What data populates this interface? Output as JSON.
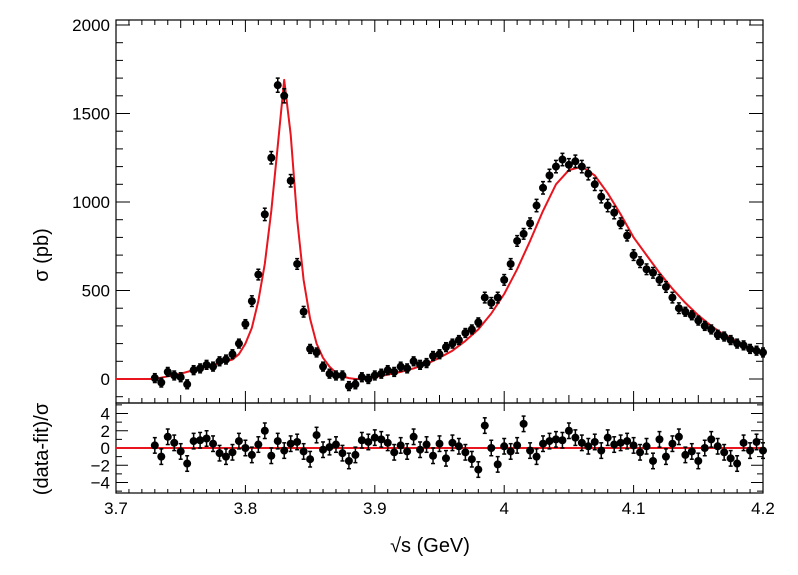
{
  "chart_data": [
    {
      "type": "scatter",
      "panel": "main",
      "title": "",
      "xlabel": "√s (GeV)",
      "ylabel": "σ (pb)",
      "xlim": [
        3.7,
        4.2
      ],
      "ylim": [
        -100,
        2000
      ],
      "x_ticks": [
        "3.7",
        "3.8",
        "3.9",
        "4",
        "4.1",
        "4.2"
      ],
      "y_ticks": [
        "0",
        "500",
        "1000",
        "1500",
        "2000"
      ],
      "series": [
        {
          "name": "data",
          "color": "#000000",
          "x": [
            3.73,
            3.735,
            3.74,
            3.745,
            3.75,
            3.755,
            3.76,
            3.765,
            3.77,
            3.775,
            3.78,
            3.785,
            3.79,
            3.795,
            3.8,
            3.805,
            3.81,
            3.815,
            3.82,
            3.825,
            3.83,
            3.835,
            3.84,
            3.845,
            3.85,
            3.855,
            3.86,
            3.865,
            3.87,
            3.875,
            3.88,
            3.885,
            3.89,
            3.895,
            3.9,
            3.905,
            3.91,
            3.915,
            3.92,
            3.925,
            3.93,
            3.935,
            3.94,
            3.945,
            3.95,
            3.955,
            3.96,
            3.965,
            3.97,
            3.975,
            3.98,
            3.985,
            3.99,
            3.995,
            4.0,
            4.005,
            4.01,
            4.015,
            4.02,
            4.025,
            4.03,
            4.035,
            4.04,
            4.045,
            4.05,
            4.055,
            4.06,
            4.065,
            4.07,
            4.075,
            4.08,
            4.085,
            4.09,
            4.095,
            4.1,
            4.105,
            4.11,
            4.115,
            4.12,
            4.125,
            4.13,
            4.135,
            4.14,
            4.145,
            4.15,
            4.155,
            4.16,
            4.165,
            4.17,
            4.175,
            4.18,
            4.185,
            4.19,
            4.195,
            4.2
          ],
          "y": [
            5,
            -20,
            40,
            20,
            10,
            -30,
            50,
            60,
            80,
            70,
            100,
            110,
            140,
            200,
            310,
            440,
            590,
            930,
            1250,
            1660,
            1600,
            1120,
            650,
            380,
            170,
            150,
            70,
            30,
            20,
            20,
            -40,
            -30,
            10,
            0,
            20,
            30,
            50,
            40,
            70,
            60,
            100,
            80,
            90,
            130,
            140,
            180,
            200,
            220,
            260,
            280,
            320,
            460,
            430,
            460,
            560,
            650,
            780,
            820,
            880,
            980,
            1080,
            1150,
            1200,
            1240,
            1210,
            1230,
            1200,
            1160,
            1100,
            1030,
            980,
            940,
            880,
            810,
            700,
            660,
            620,
            600,
            560,
            520,
            460,
            400,
            380,
            360,
            330,
            300,
            280,
            250,
            240,
            220,
            200,
            190,
            170,
            160,
            150
          ],
          "yerr": [
            25,
            25,
            25,
            25,
            25,
            25,
            25,
            25,
            25,
            25,
            25,
            25,
            25,
            25,
            25,
            30,
            30,
            35,
            35,
            40,
            40,
            35,
            30,
            30,
            25,
            25,
            25,
            25,
            25,
            25,
            25,
            25,
            25,
            25,
            25,
            25,
            25,
            25,
            25,
            25,
            25,
            25,
            25,
            25,
            25,
            25,
            25,
            25,
            25,
            25,
            25,
            30,
            30,
            30,
            30,
            30,
            30,
            30,
            30,
            35,
            35,
            35,
            35,
            35,
            35,
            35,
            35,
            35,
            35,
            35,
            35,
            35,
            30,
            30,
            30,
            30,
            30,
            30,
            30,
            30,
            30,
            30,
            25,
            25,
            25,
            25,
            25,
            25,
            25,
            25,
            25,
            25,
            25,
            25,
            25
          ]
        },
        {
          "name": "fit",
          "type": "line",
          "color": "#e8141e",
          "x": [
            3.7,
            3.73,
            3.74,
            3.75,
            3.76,
            3.77,
            3.78,
            3.79,
            3.795,
            3.8,
            3.805,
            3.81,
            3.815,
            3.82,
            3.825,
            3.83,
            3.835,
            3.84,
            3.845,
            3.85,
            3.855,
            3.86,
            3.865,
            3.87,
            3.875,
            3.88,
            3.885,
            3.89,
            3.9,
            3.91,
            3.92,
            3.93,
            3.94,
            3.95,
            3.96,
            3.97,
            3.98,
            3.99,
            4.0,
            4.01,
            4.02,
            4.03,
            4.04,
            4.05,
            4.06,
            4.07,
            4.08,
            4.09,
            4.1,
            4.11,
            4.12,
            4.13,
            4.14,
            4.15,
            4.16,
            4.17,
            4.18,
            4.19,
            4.2
          ],
          "y": [
            0,
            0,
            15,
            30,
            50,
            70,
            90,
            110,
            140,
            200,
            290,
            440,
            650,
            950,
            1320,
            1690,
            1380,
            900,
            560,
            340,
            200,
            120,
            70,
            35,
            15,
            5,
            0,
            0,
            10,
            25,
            40,
            60,
            85,
            120,
            160,
            215,
            280,
            370,
            480,
            620,
            780,
            950,
            1100,
            1180,
            1200,
            1150,
            1050,
            930,
            800,
            700,
            600,
            510,
            430,
            360,
            300,
            250,
            210,
            175,
            150
          ]
        }
      ]
    },
    {
      "type": "scatter",
      "panel": "residual",
      "xlabel": "√s (GeV)",
      "ylabel": "(data-fit)/σ",
      "xlim": [
        3.7,
        4.2
      ],
      "ylim": [
        -5.5,
        5.5
      ],
      "y_ticks": [
        "−4",
        "−2",
        "0",
        "2",
        "4"
      ],
      "series": [
        {
          "name": "pull",
          "color": "#000000",
          "x": [
            3.73,
            3.735,
            3.74,
            3.745,
            3.75,
            3.755,
            3.76,
            3.765,
            3.77,
            3.775,
            3.78,
            3.785,
            3.79,
            3.795,
            3.8,
            3.805,
            3.81,
            3.815,
            3.82,
            3.825,
            3.83,
            3.835,
            3.84,
            3.845,
            3.85,
            3.855,
            3.86,
            3.865,
            3.87,
            3.875,
            3.88,
            3.885,
            3.89,
            3.895,
            3.9,
            3.905,
            3.91,
            3.915,
            3.92,
            3.925,
            3.93,
            3.935,
            3.94,
            3.945,
            3.95,
            3.955,
            3.96,
            3.965,
            3.97,
            3.975,
            3.98,
            3.985,
            3.99,
            3.995,
            4.0,
            4.005,
            4.01,
            4.015,
            4.02,
            4.025,
            4.03,
            4.035,
            4.04,
            4.045,
            4.05,
            4.055,
            4.06,
            4.065,
            4.07,
            4.075,
            4.08,
            4.085,
            4.09,
            4.095,
            4.1,
            4.105,
            4.11,
            4.115,
            4.12,
            4.125,
            4.13,
            4.135,
            4.14,
            4.145,
            4.15,
            4.155,
            4.16,
            4.165,
            4.17,
            4.175,
            4.18,
            4.185,
            4.19,
            4.195,
            4.2
          ],
          "y": [
            0.3,
            -1.0,
            1.3,
            0.6,
            -0.4,
            -1.8,
            0.8,
            0.9,
            1.1,
            0.5,
            -0.6,
            -1.0,
            -0.5,
            0.8,
            0.0,
            -0.8,
            0.4,
            2.0,
            -0.9,
            0.8,
            -0.3,
            0.5,
            0.7,
            -0.4,
            -1.3,
            1.5,
            -0.2,
            0.1,
            0.4,
            -0.6,
            -1.5,
            -0.8,
            0.9,
            0.7,
            1.2,
            1.0,
            0.6,
            -0.5,
            0.3,
            -0.4,
            1.3,
            -0.2,
            0.4,
            -0.9,
            0.5,
            -1.2,
            0.6,
            0.2,
            -0.5,
            -1.3,
            -2.5,
            2.6,
            0.0,
            -1.9,
            0.2,
            -0.4,
            0.3,
            2.8,
            -0.3,
            -1.0,
            0.5,
            0.8,
            1.0,
            0.9,
            2.0,
            1.2,
            0.6,
            0.2,
            0.7,
            -0.3,
            1.2,
            0.4,
            0.6,
            0.8,
            0.3,
            -0.5,
            0.2,
            -1.5,
            1.0,
            -1.0,
            0.5,
            1.3,
            -0.8,
            -0.4,
            -1.5,
            0.0,
            1.0,
            0.2,
            -0.5,
            -1.2,
            -1.8,
            0.6,
            -0.3,
            0.7,
            -0.3
          ],
          "yerr": [
            0.9,
            0.9,
            0.9,
            0.9,
            0.9,
            0.9,
            0.9,
            0.9,
            0.9,
            0.9,
            0.9,
            0.9,
            0.9,
            0.9,
            0.9,
            0.9,
            0.9,
            0.9,
            0.9,
            0.9,
            0.9,
            0.9,
            0.9,
            0.9,
            0.9,
            0.9,
            0.9,
            0.9,
            0.9,
            0.9,
            0.9,
            0.9,
            0.9,
            0.9,
            0.9,
            0.9,
            0.9,
            0.9,
            0.9,
            0.9,
            0.9,
            0.9,
            0.9,
            0.9,
            0.9,
            0.9,
            0.9,
            0.9,
            0.9,
            0.9,
            0.9,
            0.9,
            0.9,
            0.9,
            0.9,
            0.9,
            0.9,
            0.9,
            0.9,
            0.9,
            0.9,
            0.9,
            0.9,
            0.9,
            0.9,
            0.9,
            0.9,
            0.9,
            0.9,
            0.9,
            0.9,
            0.9,
            0.9,
            0.9,
            0.9,
            0.9,
            0.9,
            0.9,
            0.9,
            0.9,
            0.9,
            0.9,
            0.9,
            0.9,
            0.9,
            0.9,
            0.9,
            0.9,
            0.9,
            0.9,
            0.9,
            0.9,
            0.9,
            0.9,
            0.9
          ]
        },
        {
          "name": "zero-line",
          "type": "line",
          "color": "#e8141e",
          "x": [
            3.7,
            4.2
          ],
          "y": [
            0,
            0
          ]
        }
      ]
    }
  ]
}
